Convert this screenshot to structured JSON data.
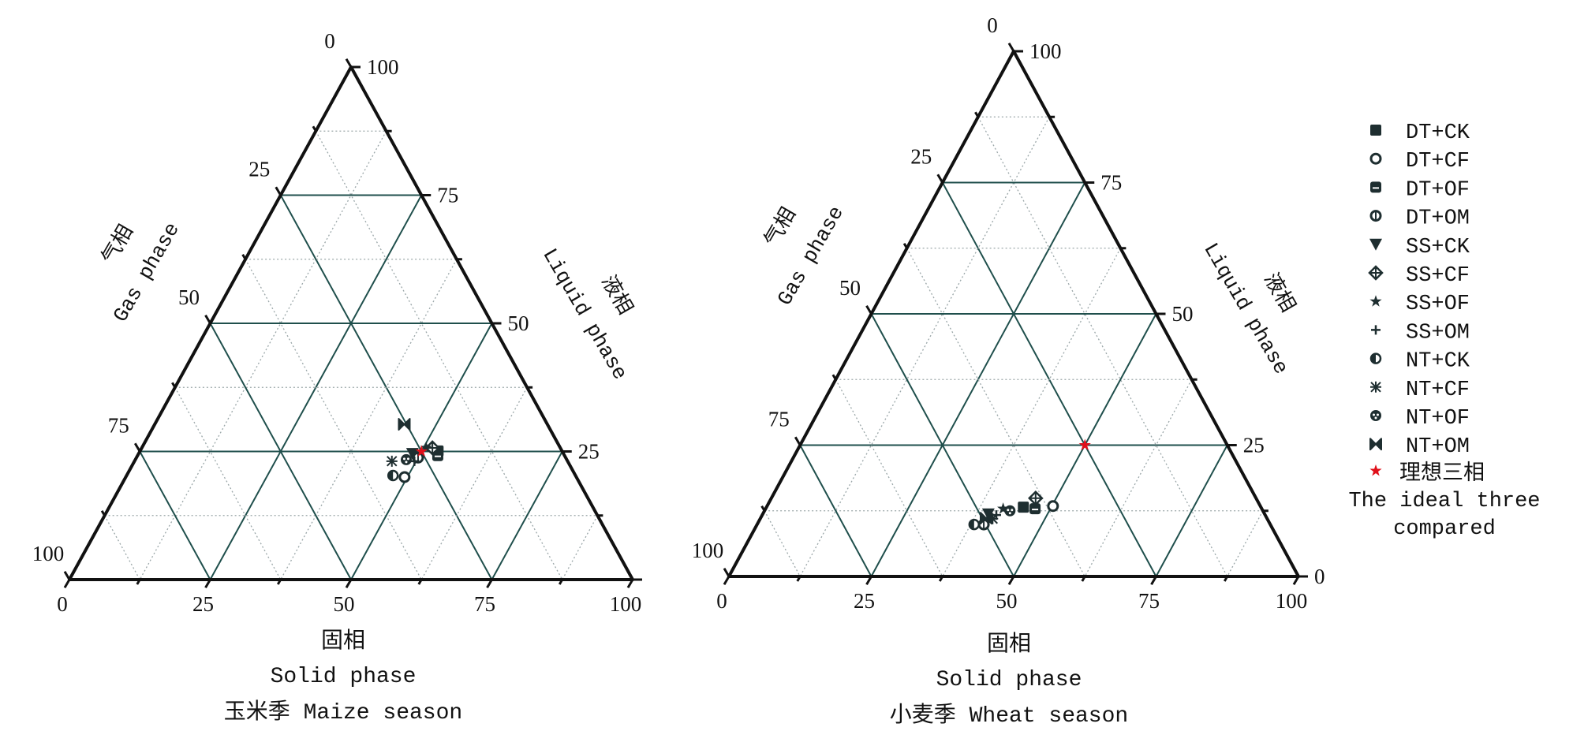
{
  "colors": {
    "major_grid": "#1f4f4c",
    "minor_grid": "#9aa6a8",
    "marker": "#1e2e30",
    "ideal": "#e0101a",
    "frame": "#111111"
  },
  "legend": {
    "items": [
      {
        "name": "DT+CK",
        "icon": "filled-square"
      },
      {
        "name": "DT+CF",
        "icon": "open-circle"
      },
      {
        "name": "DT+OF",
        "icon": "half-filled-square"
      },
      {
        "name": "DT+OM",
        "icon": "barred-circle"
      },
      {
        "name": "SS+CK",
        "icon": "filled-triangle-down"
      },
      {
        "name": "SS+CF",
        "icon": "crossed-diamond"
      },
      {
        "name": "SS+OF",
        "icon": "filled-star"
      },
      {
        "name": "SS+OM",
        "icon": "plus"
      },
      {
        "name": "NT+CK",
        "icon": "half-filled-circle"
      },
      {
        "name": "NT+CF",
        "icon": "asterisk"
      },
      {
        "name": "NT+OF",
        "icon": "flower"
      },
      {
        "name": "NT+OM",
        "icon": "bowtie"
      }
    ],
    "ideal": {
      "name_cn": "理想三相",
      "name_en_line1": "The ideal three",
      "name_en_line2": "compared",
      "icon": "red-star"
    }
  },
  "chart_data": [
    {
      "type": "ternary",
      "title": "玉米季 Maize season",
      "axes": {
        "solid": {
          "label_cn": "固相",
          "label_en": "Solid phase",
          "ticks": [
            "0",
            "25",
            "50",
            "75",
            "100"
          ]
        },
        "liquid": {
          "label_cn": "液相",
          "label_en": "Liquid phase",
          "ticks": [
            "25",
            "50",
            "75",
            "100"
          ]
        },
        "gas": {
          "label_cn": "气相",
          "label_en": "Gas phase",
          "ticks": [
            "0",
            "25",
            "50",
            "75",
            "100"
          ]
        }
      },
      "range": [
        0,
        100
      ],
      "grid": true,
      "ideal": {
        "solid": 50,
        "liquid": 25,
        "gas": 25
      },
      "series": [
        {
          "name": "DT+CK",
          "solid": 52.9,
          "liquid": 25.1,
          "gas": 22.0
        },
        {
          "name": "DT+CF",
          "solid": 49.5,
          "liquid": 20.0,
          "gas": 30.5
        },
        {
          "name": "DT+OF",
          "solid": 53.3,
          "liquid": 24.2,
          "gas": 22.5
        },
        {
          "name": "DT+OM",
          "solid": 50.0,
          "liquid": 23.8,
          "gas": 26.2
        },
        {
          "name": "SS+CK",
          "solid": 48.6,
          "liquid": 24.6,
          "gas": 26.8
        },
        {
          "name": "SS+CF",
          "solid": 51.6,
          "liquid": 25.7,
          "gas": 22.7
        },
        {
          "name": "SS+OF",
          "solid": 50.5,
          "liquid": 25.7,
          "gas": 23.8
        },
        {
          "name": "SS+OM",
          "solid": 49.7,
          "liquid": 23.1,
          "gas": 27.2
        },
        {
          "name": "NT+CK",
          "solid": 47.3,
          "liquid": 20.3,
          "gas": 32.4
        },
        {
          "name": "NT+CF",
          "solid": 45.7,
          "liquid": 23.1,
          "gas": 31.2
        },
        {
          "name": "NT+OF",
          "solid": 48.1,
          "liquid": 23.4,
          "gas": 28.5
        },
        {
          "name": "NT+OM",
          "solid": 44.3,
          "liquid": 30.3,
          "gas": 25.4
        }
      ]
    },
    {
      "type": "ternary",
      "title": "小麦季 Wheat season",
      "axes": {
        "solid": {
          "label_cn": "固相",
          "label_en": "Solid phase",
          "ticks": [
            "0",
            "25",
            "50",
            "75",
            "100"
          ]
        },
        "liquid": {
          "label_cn": "液相",
          "label_en": "Liquid phase",
          "ticks": [
            "0",
            "25",
            "50",
            "75",
            "100"
          ]
        },
        "gas": {
          "label_cn": "气相",
          "label_en": "Gas phase",
          "ticks": [
            "0",
            "25",
            "50",
            "75",
            "100"
          ]
        }
      },
      "range": [
        0,
        100
      ],
      "grid": true,
      "ideal": {
        "solid": 50,
        "liquid": 25,
        "gas": 25
      },
      "series": [
        {
          "name": "DT+CK",
          "solid": 45.1,
          "liquid": 13.2,
          "gas": 41.7
        },
        {
          "name": "DT+CF",
          "solid": 50.2,
          "liquid": 13.4,
          "gas": 36.4
        },
        {
          "name": "DT+OF",
          "solid": 47.3,
          "liquid": 12.9,
          "gas": 39.8
        },
        {
          "name": "DT+OM",
          "solid": 39.8,
          "liquid": 9.9,
          "gas": 50.3
        },
        {
          "name": "SS+CK",
          "solid": 39.6,
          "liquid": 11.9,
          "gas": 48.5
        },
        {
          "name": "SS+CF",
          "solid": 46.4,
          "liquid": 14.9,
          "gas": 38.7
        },
        {
          "name": "SS+OF",
          "solid": 41.7,
          "liquid": 12.9,
          "gas": 45.4
        },
        {
          "name": "SS+OM",
          "solid": 41.1,
          "liquid": 11.7,
          "gas": 47.2
        },
        {
          "name": "NT+CK",
          "solid": 38.1,
          "liquid": 9.9,
          "gas": 52.0
        },
        {
          "name": "NT+CF",
          "solid": 40.8,
          "liquid": 11.0,
          "gas": 48.2
        },
        {
          "name": "NT+OF",
          "solid": 43.1,
          "liquid": 12.5,
          "gas": 44.4
        },
        {
          "name": "NT+OM",
          "solid": 39.6,
          "liquid": 11.1,
          "gas": 49.3
        }
      ]
    }
  ]
}
